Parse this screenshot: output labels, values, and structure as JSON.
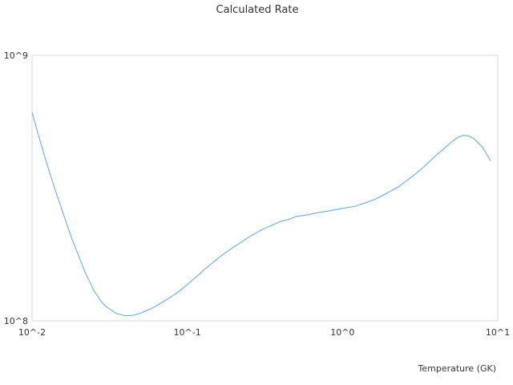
{
  "chart_data": {
    "type": "line",
    "title": "Calculated Rate",
    "xlabel": "Temperature (GK)",
    "ylabel": "",
    "x_scale": "log",
    "y_scale": "log",
    "xlim": [
      0.01,
      10
    ],
    "ylim": [
      100000000,
      1000000000
    ],
    "x_ticks": [
      0.01,
      0.1,
      1,
      10
    ],
    "x_tick_labels": [
      "10^-2",
      "10^-1",
      "10^0",
      "10^1"
    ],
    "y_ticks": [
      100000000,
      1000000000
    ],
    "y_tick_labels": [
      "10^8",
      "10^9"
    ],
    "grid": false,
    "legend": "none",
    "colors": {
      "line": "#5aa5e8",
      "frame": "#d9d9d9"
    },
    "series": [
      {
        "x": [
          0.01,
          0.011,
          0.012,
          0.013,
          0.014,
          0.015,
          0.016,
          0.018,
          0.02,
          0.022,
          0.025,
          0.028,
          0.03,
          0.035,
          0.04,
          0.045,
          0.05,
          0.055,
          0.06,
          0.07,
          0.08,
          0.09,
          0.1,
          0.11,
          0.12,
          0.13,
          0.15,
          0.17,
          0.2,
          0.22,
          0.25,
          0.28,
          0.3,
          0.35,
          0.4,
          0.45,
          0.5,
          0.6,
          0.7,
          0.8,
          0.9,
          1.0,
          1.2,
          1.4,
          1.6,
          1.8,
          2.0,
          2.3,
          2.6,
          3.0,
          3.5,
          4.0,
          4.5,
          5.0,
          5.5,
          6.0,
          6.5,
          7.0,
          8.0,
          9.0
        ],
        "y": [
          610000000,
          500000000,
          420000000,
          360000000,
          315000000,
          280000000,
          250000000,
          205000000,
          175000000,
          152000000,
          130000000,
          118000000,
          113000000,
          106500000,
          104500000,
          105000000,
          107000000,
          109500000,
          112000000,
          118000000,
          124000000,
          130000000,
          137000000,
          144000000,
          150000000,
          157000000,
          168000000,
          178000000,
          190000000,
          197000000,
          207000000,
          215000000,
          220000000,
          229000000,
          237000000,
          241000000,
          247000000,
          251000000,
          256000000,
          259000000,
          262000000,
          265000000,
          270000000,
          278000000,
          286000000,
          296000000,
          306000000,
          320000000,
          338000000,
          360000000,
          390000000,
          420000000,
          445000000,
          470000000,
          490000000,
          500000000,
          497000000,
          486000000,
          450000000,
          400000000
        ]
      }
    ]
  }
}
